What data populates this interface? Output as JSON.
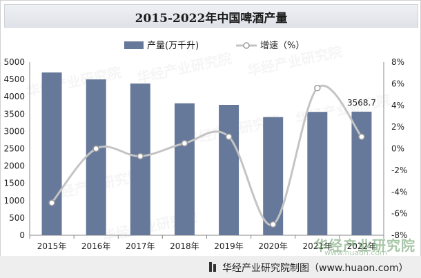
{
  "chart_data": {
    "type": "bar+line",
    "title": "2015-2022年中国啤酒产量",
    "categories": [
      "2015年",
      "2016年",
      "2017年",
      "2018年",
      "2019年",
      "2020年",
      "2021年",
      "2022年"
    ],
    "series": [
      {
        "name": "产量(万千升)",
        "type": "bar",
        "axis": "left",
        "color": "#67799a",
        "values": [
          4700,
          4500,
          4380,
          3810,
          3765,
          3411,
          3562,
          3568.7
        ]
      },
      {
        "name": "增速（%）",
        "type": "line",
        "axis": "right",
        "color": "#c4c4c4",
        "values": [
          -5.0,
          0.0,
          -0.7,
          0.5,
          1.1,
          -7.0,
          5.6,
          1.1
        ]
      }
    ],
    "left_axis": {
      "min": 0,
      "max": 5000,
      "step": 500,
      "ticks": [
        "0",
        "500",
        "1000",
        "1500",
        "2000",
        "2500",
        "3000",
        "3500",
        "4000",
        "4500",
        "5000"
      ]
    },
    "right_axis": {
      "min": -8,
      "max": 8,
      "step": 2,
      "ticks": [
        "-8%",
        "-6%",
        "-4%",
        "-2%",
        "0%",
        "2%",
        "4%",
        "6%",
        "8%"
      ]
    },
    "data_labels": [
      {
        "category_index": 7,
        "text": "3568.7"
      }
    ],
    "legend_placement": "top"
  },
  "watermark": "华经产业研究院",
  "watermark_url": "www.huaon.com",
  "footer": {
    "text": "华经产业研究院制图（www.huaon.com）"
  }
}
